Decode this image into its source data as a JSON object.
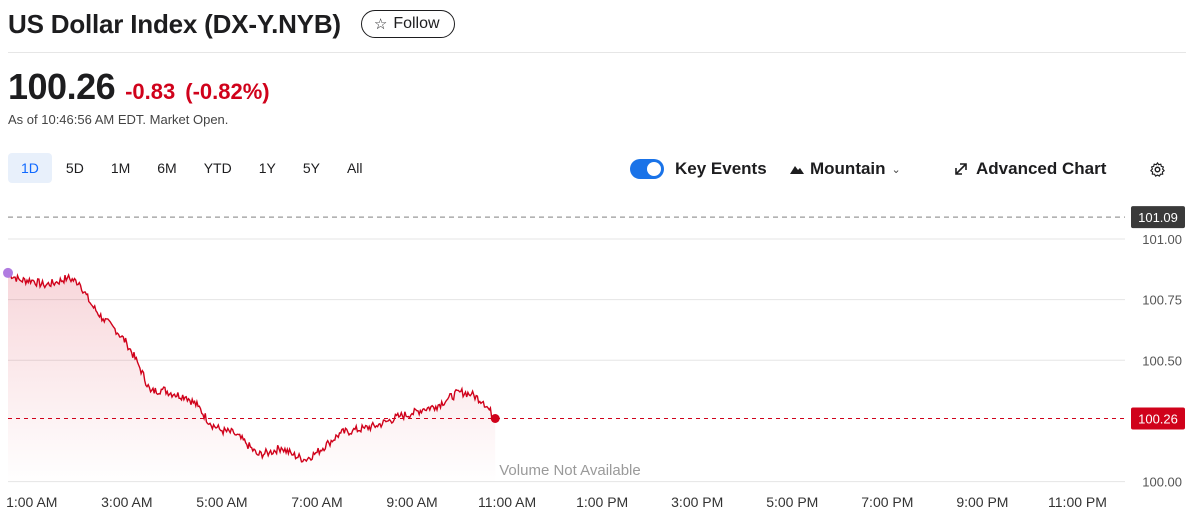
{
  "header": {
    "title": "US Dollar Index (DX-Y.NYB)",
    "follow_label": "Follow"
  },
  "quote": {
    "price": "100.26",
    "change": "-0.83",
    "change_pct": "(-0.82%)",
    "as_of": "As of 10:46:56 AM EDT. Market Open.",
    "down_color": "#d0021b"
  },
  "ranges": {
    "items": [
      "1D",
      "5D",
      "1M",
      "6M",
      "YTD",
      "1Y",
      "5Y",
      "All"
    ],
    "active": "1D"
  },
  "toolbar": {
    "key_events_label": "Key Events",
    "key_events_on": true,
    "chart_type_label": "Mountain",
    "advanced_label": "Advanced Chart"
  },
  "chart_data": {
    "type": "area",
    "xlim": [
      0.5,
      24
    ],
    "x_tick_labels": [
      "1:00 AM",
      "3:00 AM",
      "5:00 AM",
      "7:00 AM",
      "9:00 AM",
      "11:00 AM",
      "1:00 PM",
      "3:00 PM",
      "5:00 PM",
      "7:00 PM",
      "9:00 PM",
      "11:00 PM"
    ],
    "x_tick_hours": [
      1,
      3,
      5,
      7,
      9,
      11,
      13,
      15,
      17,
      19,
      21,
      23
    ],
    "ylim": [
      99.99,
      101.14
    ],
    "y_ticks": [
      101.0,
      100.75,
      100.5,
      100.0
    ],
    "y_tick_labels": [
      "101.00",
      "100.75",
      "100.50",
      "100.00"
    ],
    "prev_close": 101.09,
    "prev_close_label": "101.09",
    "current": 100.26,
    "current_label": "100.26",
    "watermark": "Volume Not Available",
    "series": [
      {
        "color": "#d0021b",
        "x": [
          0.5,
          0.75,
          1.0,
          1.25,
          1.5,
          1.75,
          2.0,
          2.25,
          2.5,
          2.75,
          3.0,
          3.25,
          3.5,
          3.75,
          4.0,
          4.25,
          4.5,
          4.75,
          5.0,
          5.25,
          5.5,
          5.75,
          6.0,
          6.25,
          6.5,
          6.75,
          7.0,
          7.25,
          7.5,
          7.75,
          8.0,
          8.25,
          8.5,
          8.75,
          9.0,
          9.25,
          9.5,
          9.75,
          10.0,
          10.25,
          10.5,
          10.75
        ],
        "y": [
          100.86,
          100.83,
          100.83,
          100.81,
          100.82,
          100.84,
          100.82,
          100.73,
          100.67,
          100.63,
          100.57,
          100.48,
          100.37,
          100.38,
          100.36,
          100.35,
          100.31,
          100.24,
          100.21,
          100.2,
          100.16,
          100.11,
          100.12,
          100.14,
          100.11,
          100.09,
          100.12,
          100.16,
          100.2,
          100.21,
          100.22,
          100.23,
          100.25,
          100.27,
          100.28,
          100.3,
          100.31,
          100.34,
          100.37,
          100.36,
          100.33,
          100.26
        ]
      }
    ],
    "line_color": "#d0021b",
    "start_marker_color": "#b07be0"
  }
}
